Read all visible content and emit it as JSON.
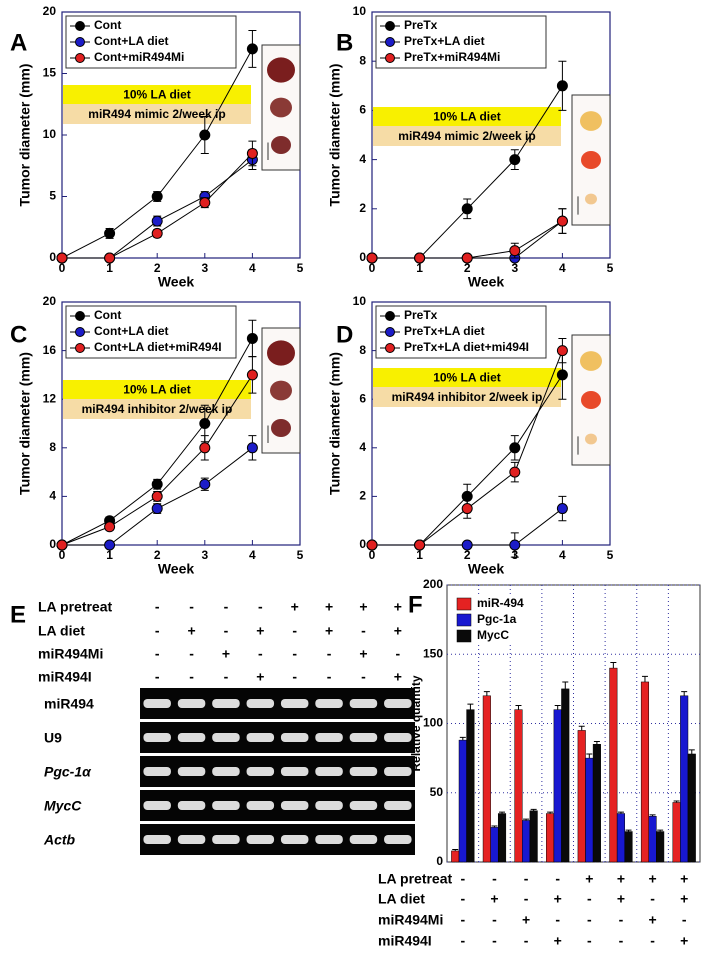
{
  "chart_data": [
    {
      "type": "line",
      "panel": "A",
      "xlabel": "Week",
      "ylabel": "Tumor diameter (mm)",
      "annotations": [
        "10% LA diet",
        "miR494 mimic 2/week ip"
      ],
      "x": [
        0,
        1,
        2,
        3,
        4
      ],
      "xlim": [
        0,
        5
      ],
      "xticks": [
        0,
        1,
        2,
        3,
        4,
        5
      ],
      "ylim": [
        0,
        20
      ],
      "yticks": [
        0,
        5,
        10,
        15,
        20
      ],
      "series": [
        {
          "name": "Cont",
          "color": "#000000",
          "values": [
            0,
            2,
            5,
            10,
            17
          ],
          "errors": [
            0,
            0.4,
            0.4,
            1.5,
            1.5
          ]
        },
        {
          "name": "Cont+LA diet",
          "color": "#1c1cc8",
          "values": [
            0,
            0,
            3,
            5,
            8
          ],
          "errors": [
            0,
            0,
            0.4,
            0.4,
            0.8
          ]
        },
        {
          "name": "Cont+miR494Mi",
          "color": "#e02020",
          "values": [
            0,
            0,
            2,
            4.5,
            8.5
          ],
          "errors": [
            0,
            0,
            0.3,
            0.4,
            1
          ]
        }
      ]
    },
    {
      "type": "line",
      "panel": "B",
      "xlabel": "Week",
      "ylabel": "Tumor diameter (mm)",
      "annotations": [
        "10% LA diet",
        "miR494 mimic 2/week ip"
      ],
      "x": [
        0,
        1,
        2,
        3,
        4
      ],
      "xlim": [
        0,
        5
      ],
      "xticks": [
        0,
        1,
        2,
        3,
        4,
        5
      ],
      "ylim": [
        0,
        10
      ],
      "yticks": [
        0,
        2,
        4,
        6,
        8,
        10
      ],
      "series": [
        {
          "name": "PreTx",
          "color": "#000000",
          "values": [
            0,
            0,
            2,
            4,
            7
          ],
          "errors": [
            0,
            0,
            0.4,
            0.4,
            1
          ]
        },
        {
          "name": "PreTx+LA diet",
          "color": "#1c1cc8",
          "values": [
            0,
            0,
            0,
            0,
            1.5
          ],
          "errors": [
            0,
            0,
            0,
            0,
            0.5
          ]
        },
        {
          "name": "PreTx+miR494Mi",
          "color": "#e02020",
          "values": [
            0,
            0,
            0,
            0.3,
            1.5
          ],
          "errors": [
            0,
            0,
            0,
            0.3,
            0.5
          ]
        }
      ]
    },
    {
      "type": "line",
      "panel": "C",
      "xlabel": "Week",
      "ylabel": "Tumor diameter (mm)",
      "annotations": [
        "10% LA diet",
        "miR494 inhibitor 2/week ip"
      ],
      "x": [
        0,
        1,
        2,
        3,
        4
      ],
      "xlim": [
        0,
        5
      ],
      "xticks": [
        0,
        1,
        2,
        3,
        4,
        5
      ],
      "ylim": [
        0,
        20
      ],
      "yticks": [
        0,
        4,
        8,
        12,
        16,
        20
      ],
      "series": [
        {
          "name": "Cont",
          "color": "#000000",
          "values": [
            0,
            2,
            5,
            10,
            17
          ],
          "errors": [
            0,
            0.3,
            0.4,
            1.5,
            1.5
          ]
        },
        {
          "name": "Cont+LA diet",
          "color": "#1c1cc8",
          "values": [
            0,
            0,
            3,
            5,
            8
          ],
          "errors": [
            0,
            0,
            0.4,
            0.5,
            1
          ]
        },
        {
          "name": "Cont+LA diet+miR494I",
          "color": "#e02020",
          "values": [
            0,
            1.5,
            4,
            8,
            14
          ],
          "errors": [
            0,
            0.3,
            0.4,
            1,
            1.5
          ]
        }
      ]
    },
    {
      "type": "line",
      "panel": "D",
      "xlabel": "Week",
      "ylabel": "Tumor diameter (mm)",
      "annotations": [
        "10% LA diet",
        "miR494 inhibitor 2/week ip"
      ],
      "x": [
        0,
        1,
        2,
        3,
        4
      ],
      "xlim": [
        0,
        5
      ],
      "xticks": [
        0,
        1,
        2,
        3,
        4,
        5
      ],
      "ylim": [
        0,
        10
      ],
      "yticks": [
        0,
        2,
        4,
        6,
        8,
        10
      ],
      "series": [
        {
          "name": "PreTx",
          "color": "#000000",
          "values": [
            0,
            0,
            2,
            4,
            7
          ],
          "errors": [
            0,
            0,
            0.5,
            0.5,
            1
          ]
        },
        {
          "name": "PreTx+LA diet",
          "color": "#1c1cc8",
          "values": [
            0,
            0,
            0,
            0,
            1.5
          ],
          "errors": [
            0,
            0,
            0,
            0.5,
            0.5
          ]
        },
        {
          "name": "PreTx+LA diet+mi494I",
          "color": "#e02020",
          "values": [
            0,
            0,
            1.5,
            3,
            8
          ],
          "errors": [
            0,
            0,
            0.4,
            0.4,
            0.5
          ]
        }
      ]
    },
    {
      "type": "bar",
      "panel": "F",
      "ylabel": "Relative quantity",
      "grid": true,
      "categories": [
        null,
        null,
        null,
        null,
        null,
        null,
        null,
        null
      ],
      "ylim": [
        0,
        200
      ],
      "yticks": [
        0,
        50,
        100,
        150,
        200
      ],
      "series": [
        {
          "name": "miR-494",
          "color": "#e52222",
          "values": [
            8,
            120,
            110,
            35,
            95,
            140,
            130,
            43
          ],
          "errors": [
            1,
            3,
            3,
            1,
            3,
            4,
            4,
            1
          ]
        },
        {
          "name": "Pgc-1a",
          "color": "#1818d0",
          "values": [
            88,
            25,
            30,
            110,
            75,
            35,
            33,
            120
          ],
          "errors": [
            2,
            1,
            1,
            3,
            3,
            1,
            1,
            3
          ]
        },
        {
          "name": "MycC",
          "color": "#0a0a0a",
          "values": [
            110,
            35,
            37,
            125,
            85,
            22,
            22,
            78
          ],
          "errors": [
            4,
            1,
            1,
            5,
            2,
            1,
            1,
            3
          ]
        }
      ],
      "conditions": [
        {
          "label": "LA pretreat",
          "signs": [
            "-",
            "-",
            "-",
            "-",
            "+",
            "+",
            "+",
            "+"
          ]
        },
        {
          "label": "LA diet",
          "signs": [
            "-",
            "+",
            "-",
            "+",
            "-",
            "+",
            "-",
            "+"
          ]
        },
        {
          "label": "miR494Mi",
          "signs": [
            "-",
            "-",
            "+",
            "-",
            "-",
            "-",
            "+",
            "-"
          ]
        },
        {
          "label": "miR494I",
          "signs": [
            "-",
            "-",
            "-",
            "+",
            "-",
            "-",
            "-",
            "+"
          ]
        }
      ]
    }
  ],
  "gel": {
    "panel": "E",
    "conditions": [
      {
        "label": "LA pretreat",
        "signs": [
          "-",
          "-",
          "-",
          "-",
          "+",
          "+",
          "+",
          "+"
        ]
      },
      {
        "label": "LA diet",
        "signs": [
          "-",
          "+",
          "-",
          "+",
          "-",
          "+",
          "-",
          "+"
        ]
      },
      {
        "label": "miR494Mi",
        "signs": [
          "-",
          "-",
          "+",
          "-",
          "-",
          "-",
          "+",
          "-"
        ]
      },
      {
        "label": "miR494I",
        "signs": [
          "-",
          "-",
          "-",
          "+",
          "-",
          "-",
          "-",
          "+"
        ]
      }
    ],
    "bands": [
      "miR494",
      "U9",
      "Pgc-1α",
      "MycC",
      "Actb"
    ]
  }
}
